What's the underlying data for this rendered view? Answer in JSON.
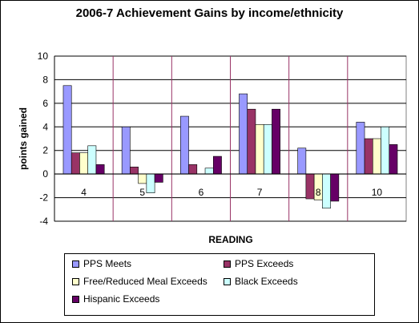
{
  "chart_data": {
    "type": "bar",
    "title": "2006-7 Achievement Gains by income/ethnicity",
    "xlabel": "READING",
    "ylabel": "points gained",
    "categories": [
      "4",
      "5",
      "6",
      "7",
      "8",
      "10"
    ],
    "ylim": [
      -4,
      10
    ],
    "yticks": [
      "-4",
      "-2",
      "0",
      "2",
      "4",
      "6",
      "8",
      "10"
    ],
    "grid": "horizontal",
    "legend_position": "bottom",
    "series": [
      {
        "name": "PPS Meets",
        "color": "#9999ff",
        "values": [
          7.5,
          4.0,
          4.9,
          6.8,
          2.2,
          4.4
        ]
      },
      {
        "name": "PPS Exceeds",
        "color": "#993366",
        "values": [
          1.8,
          0.6,
          0.8,
          5.5,
          -2.1,
          3.0
        ]
      },
      {
        "name": "Free/Reduced Meal Exceeds",
        "color": "#ffffcc",
        "values": [
          1.8,
          -0.8,
          0.0,
          4.2,
          -2.2,
          3.0
        ]
      },
      {
        "name": "Black Exceeds",
        "color": "#ccffff",
        "values": [
          2.4,
          -1.6,
          0.5,
          4.2,
          -2.9,
          4.0
        ]
      },
      {
        "name": "Hispanic Exceeds",
        "color": "#660066",
        "values": [
          0.8,
          -0.7,
          1.5,
          5.5,
          -2.3,
          2.5
        ]
      }
    ]
  }
}
